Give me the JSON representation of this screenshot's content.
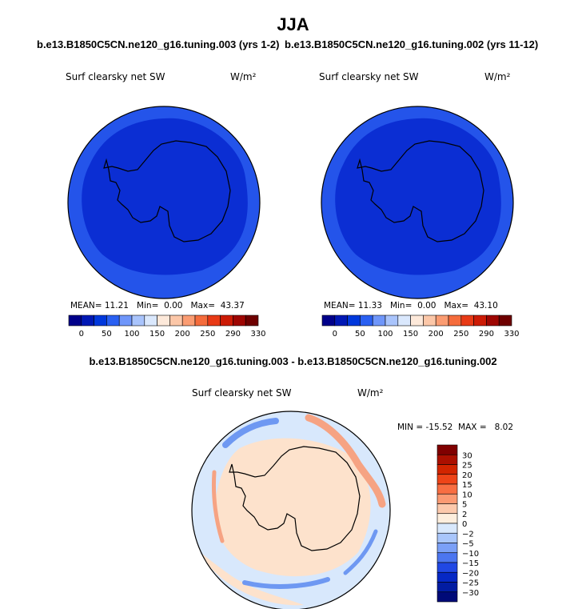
{
  "title": "JJA",
  "case_left": "b.e13.B1850C5CN.ne120_g16.tuning.003 (yrs 1-2)",
  "case_right": "b.e13.B1850C5CN.ne120_g16.tuning.002 (yrs 11-12)",
  "diff_title": "b.e13.B1850C5CN.ne120_g16.tuning.003 - b.e13.B1850C5CN.ne120_g16.tuning.002",
  "variable": "Surf clearsky net SW",
  "units": "W/m²",
  "panel_left": {
    "mean": "11.21",
    "min": "0.00",
    "max": "43.37"
  },
  "panel_right": {
    "mean": "11.33",
    "min": "0.00",
    "max": "43.10"
  },
  "diff_stats": {
    "min": "-15.52",
    "max": "8.02"
  },
  "stat_labels": {
    "mean": "MEAN=",
    "min": "Min=",
    "max": "Max=",
    "dmin": "MIN =",
    "dmax": "MAX ="
  },
  "colorbar_abs": {
    "levels": [
      "0",
      "50",
      "100",
      "150",
      "200",
      "250",
      "290",
      "330"
    ],
    "colors": [
      "#00008a",
      "#0018b4",
      "#0038dc",
      "#2a60f2",
      "#6f96fa",
      "#a9c4fc",
      "#dae8fd",
      "#fde9da",
      "#fcc7a8",
      "#fb9c72",
      "#f56c3c",
      "#e83a16",
      "#cc1b05",
      "#9e0602",
      "#6e0000"
    ]
  },
  "colorbar_diff": {
    "levels": [
      "30",
      "25",
      "20",
      "15",
      "10",
      "5",
      "2",
      "0",
      "−2",
      "−5",
      "−10",
      "−15",
      "−20",
      "−25",
      "−30"
    ],
    "colors": [
      "#800000",
      "#ab1000",
      "#d22500",
      "#ee4418",
      "#f86e42",
      "#fb9a73",
      "#fcc9ac",
      "#fdeedd",
      "#d8e8fc",
      "#a9c6fb",
      "#7ba0f7",
      "#4c76f0",
      "#2148e4",
      "#0628c5",
      "#021ca2",
      "#000a78"
    ]
  },
  "map_fill": {
    "ocean_outer": "#2454ea",
    "ocean_inner": "#0b2ed3",
    "diff_bg": "#d8e8fc",
    "diff_pos": "#fde2cc",
    "diff_red": "#f6a383",
    "diff_blue": "#6e98f2"
  }
}
